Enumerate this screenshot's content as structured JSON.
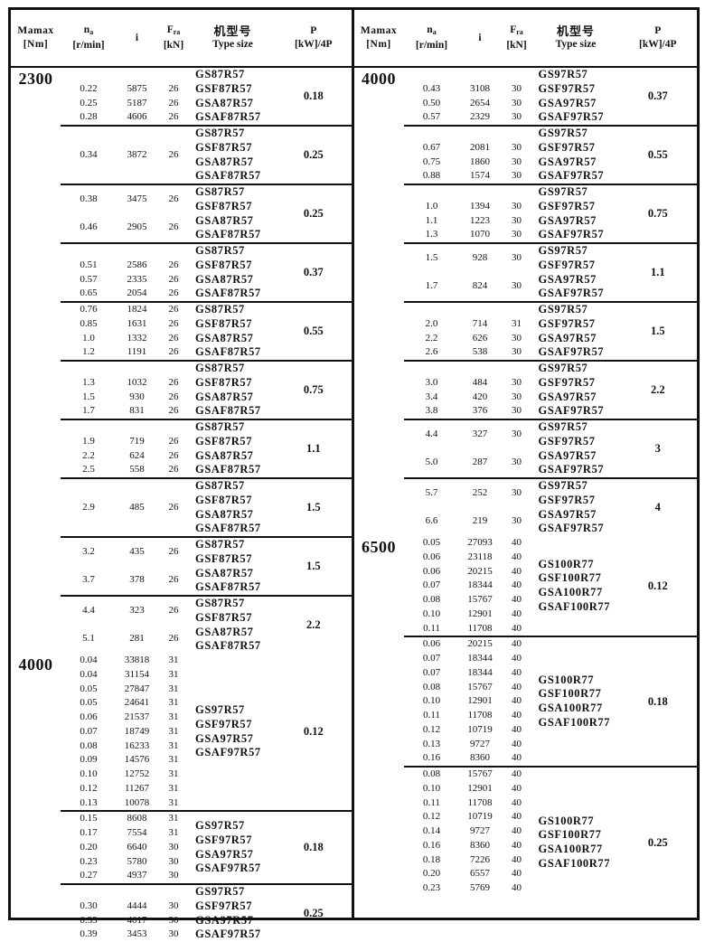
{
  "header": {
    "mamax": "Mamax",
    "mamax_unit": "[Nm]",
    "na": "n",
    "na_sub": "a",
    "na_unit": "[r/min]",
    "i": "i",
    "fra": "F",
    "fra_sub": "ra",
    "fra_unit": "[kN]",
    "type_zh": "机型号",
    "type_en": "Type size",
    "p": "P",
    "p_unit": "[kW]/4P"
  },
  "left": [
    {
      "mamax": "2300",
      "groups": [
        {
          "rows": [
            [
              "0.22",
              "5875",
              "26"
            ],
            [
              "0.25",
              "5187",
              "26"
            ],
            [
              "0.28",
              "4606",
              "26"
            ]
          ],
          "types": [
            "GS87R57",
            "GSF87R57",
            "GSA87R57",
            "GSAF87R57"
          ],
          "p": "0.18"
        },
        {
          "rows": [
            [
              "0.34",
              "3872",
              "26"
            ]
          ],
          "types": [
            "GS87R57",
            "GSF87R57",
            "GSA87R57",
            "GSAF87R57"
          ],
          "p": "0.25"
        },
        {
          "rows": [
            [
              "0.38",
              "3475",
              "26"
            ],
            [
              "0.46",
              "2905",
              "26"
            ]
          ],
          "types": [
            "GS87R57",
            "GSF87R57",
            "GSA87R57",
            "GSAF87R57"
          ],
          "p": "0.25"
        },
        {
          "rows": [
            [
              "0.51",
              "2586",
              "26"
            ],
            [
              "0.57",
              "2335",
              "26"
            ],
            [
              "0.65",
              "2054",
              "26"
            ]
          ],
          "types": [
            "GS87R57",
            "GSF87R57",
            "GSA87R57",
            "GSAF87R57"
          ],
          "p": "0.37"
        },
        {
          "rows": [
            [
              "0.76",
              "1824",
              "26"
            ],
            [
              "0.85",
              "1631",
              "26"
            ],
            [
              "1.0",
              "1332",
              "26"
            ],
            [
              "1.2",
              "1191",
              "26"
            ]
          ],
          "types": [
            "GS87R57",
            "GSF87R57",
            "GSA87R57",
            "GSAF87R57"
          ],
          "p": "0.55"
        },
        {
          "rows": [
            [
              "1.3",
              "1032",
              "26"
            ],
            [
              "1.5",
              "930",
              "26"
            ],
            [
              "1.7",
              "831",
              "26"
            ]
          ],
          "types": [
            "GS87R57",
            "GSF87R57",
            "GSA87R57",
            "GSAF87R57"
          ],
          "p": "0.75"
        },
        {
          "rows": [
            [
              "1.9",
              "719",
              "26"
            ],
            [
              "2.2",
              "624",
              "26"
            ],
            [
              "2.5",
              "558",
              "26"
            ]
          ],
          "types": [
            "GS87R57",
            "GSF87R57",
            "GSA87R57",
            "GSAF87R57"
          ],
          "p": "1.1"
        },
        {
          "rows": [
            [
              "2.9",
              "485",
              "26"
            ]
          ],
          "types": [
            "GS87R57",
            "GSF87R57",
            "GSA87R57",
            "GSAF87R57"
          ],
          "p": "1.5"
        },
        {
          "rows": [
            [
              "3.2",
              "435",
              "26"
            ],
            [
              "3.7",
              "378",
              "26"
            ]
          ],
          "types": [
            "GS87R57",
            "GSF87R57",
            "GSA87R57",
            "GSAF87R57"
          ],
          "p": "1.5"
        },
        {
          "rows": [
            [
              "4.4",
              "323",
              "26"
            ],
            [
              "5.1",
              "281",
              "26"
            ]
          ],
          "types": [
            "GS87R57",
            "GSF87R57",
            "GSA87R57",
            "GSAF87R57"
          ],
          "p": "2.2"
        }
      ]
    },
    {
      "mamax": "4000",
      "groups": [
        {
          "rows": [
            [
              "0.04",
              "33818",
              "31"
            ],
            [
              "0.04",
              "31154",
              "31"
            ],
            [
              "0.05",
              "27847",
              "31"
            ],
            [
              "0.05",
              "24641",
              "31"
            ],
            [
              "0.06",
              "21537",
              "31"
            ],
            [
              "0.07",
              "18749",
              "31"
            ],
            [
              "0.08",
              "16233",
              "31"
            ],
            [
              "0.09",
              "14576",
              "31"
            ],
            [
              "0.10",
              "12752",
              "31"
            ],
            [
              "0.12",
              "11267",
              "31"
            ],
            [
              "0.13",
              "10078",
              "31"
            ]
          ],
          "types": [
            "GS97R57",
            "GSF97R57",
            "GSA97R57",
            "GSAF97R57"
          ],
          "p": "0.12"
        },
        {
          "rows": [
            [
              "0.15",
              "8608",
              "31"
            ],
            [
              "0.17",
              "7554",
              "31"
            ],
            [
              "0.20",
              "6640",
              "30"
            ],
            [
              "0.23",
              "5780",
              "30"
            ],
            [
              "0.27",
              "4937",
              "30"
            ]
          ],
          "types": [
            "GS97R57",
            "GSF97R57",
            "GSA97R57",
            "GSAF97R57"
          ],
          "p": "0.18"
        },
        {
          "rows": [
            [
              "0.30",
              "4444",
              "30"
            ],
            [
              "0.33",
              "4017",
              "30"
            ],
            [
              "0.39",
              "3453",
              "30"
            ]
          ],
          "types": [
            "GS97R57",
            "GSF97R57",
            "GSA97R57",
            "GSAF97R57"
          ],
          "p": "0.25"
        }
      ]
    }
  ],
  "right": [
    {
      "mamax": "4000",
      "groups": [
        {
          "rows": [
            [
              "0.43",
              "3108",
              "30"
            ],
            [
              "0.50",
              "2654",
              "30"
            ],
            [
              "0.57",
              "2329",
              "30"
            ]
          ],
          "types": [
            "GS97R57",
            "GSF97R57",
            "GSA97R57",
            "GSAF97R57"
          ],
          "p": "0.37"
        },
        {
          "rows": [
            [
              "0.67",
              "2081",
              "30"
            ],
            [
              "0.75",
              "1860",
              "30"
            ],
            [
              "0.88",
              "1574",
              "30"
            ]
          ],
          "types": [
            "GS97R57",
            "GSF97R57",
            "GSA97R57",
            "GSAF97R57"
          ],
          "p": "0.55"
        },
        {
          "rows": [
            [
              "1.0",
              "1394",
              "30"
            ],
            [
              "1.1",
              "1223",
              "30"
            ],
            [
              "1.3",
              "1070",
              "30"
            ]
          ],
          "types": [
            "GS97R57",
            "GSF97R57",
            "GSA97R57",
            "GSAF97R57"
          ],
          "p": "0.75"
        },
        {
          "rows": [
            [
              "1.5",
              "928",
              "30"
            ],
            [
              "1.7",
              "824",
              "30"
            ]
          ],
          "types": [
            "GS97R57",
            "GSF97R57",
            "GSA97R57",
            "GSAF97R57"
          ],
          "p": "1.1"
        },
        {
          "rows": [
            [
              "2.0",
              "714",
              "31"
            ],
            [
              "2.2",
              "626",
              "30"
            ],
            [
              "2.6",
              "538",
              "30"
            ]
          ],
          "types": [
            "GS97R57",
            "GSF97R57",
            "GSA97R57",
            "GSAF97R57"
          ],
          "p": "1.5"
        },
        {
          "rows": [
            [
              "3.0",
              "484",
              "30"
            ],
            [
              "3.4",
              "420",
              "30"
            ],
            [
              "3.8",
              "376",
              "30"
            ]
          ],
          "types": [
            "GS97R57",
            "GSF97R57",
            "GSA97R57",
            "GSAF97R57"
          ],
          "p": "2.2"
        },
        {
          "rows": [
            [
              "4.4",
              "327",
              "30"
            ],
            [
              "5.0",
              "287",
              "30"
            ]
          ],
          "types": [
            "GS97R57",
            "GSF97R57",
            "GSA97R57",
            "GSAF97R57"
          ],
          "p": "3"
        },
        {
          "rows": [
            [
              "5.7",
              "252",
              "30"
            ],
            [
              "6.6",
              "219",
              "30"
            ]
          ],
          "types": [
            "GS97R57",
            "GSF97R57",
            "GSA97R57",
            "GSAF97R57"
          ],
          "p": "4"
        }
      ]
    },
    {
      "mamax": "6500",
      "groups": [
        {
          "rows": [
            [
              "0.05",
              "27093",
              "40"
            ],
            [
              "0.06",
              "23118",
              "40"
            ],
            [
              "0.06",
              "20215",
              "40"
            ],
            [
              "0.07",
              "18344",
              "40"
            ],
            [
              "0.08",
              "15767",
              "40"
            ],
            [
              "0.10",
              "12901",
              "40"
            ],
            [
              "0.11",
              "11708",
              "40"
            ]
          ],
          "types": [
            "GS100R77",
            "GSF100R77",
            "GSA100R77",
            "GSAF100R77"
          ],
          "p": "0.12"
        },
        {
          "rows": [
            [
              "0.06",
              "20215",
              "40"
            ],
            [
              "0.07",
              "18344",
              "40"
            ],
            [
              "0.07",
              "18344",
              "40"
            ],
            [
              "0.08",
              "15767",
              "40"
            ],
            [
              "0.10",
              "12901",
              "40"
            ],
            [
              "0.11",
              "11708",
              "40"
            ],
            [
              "0.12",
              "10719",
              "40"
            ],
            [
              "0.13",
              "9727",
              "40"
            ],
            [
              "0.16",
              "8360",
              "40"
            ]
          ],
          "types": [
            "GS100R77",
            "GSF100R77",
            "GSA100R77",
            "GSAF100R77"
          ],
          "p": "0.18"
        },
        {
          "rows": [
            [
              "0.08",
              "15767",
              "40"
            ],
            [
              "0.10",
              "12901",
              "40"
            ],
            [
              "0.11",
              "11708",
              "40"
            ],
            [
              "0.12",
              "10719",
              "40"
            ],
            [
              "0.14",
              "9727",
              "40"
            ],
            [
              "0.16",
              "8360",
              "40"
            ],
            [
              "0.18",
              "7226",
              "40"
            ],
            [
              "0.20",
              "6557",
              "40"
            ],
            [
              "0.23",
              "5769",
              "40"
            ]
          ],
          "types": [
            "GS100R77",
            "GSF100R77",
            "GSA100R77",
            "GSAF100R77"
          ],
          "p": "0.25"
        }
      ]
    }
  ]
}
